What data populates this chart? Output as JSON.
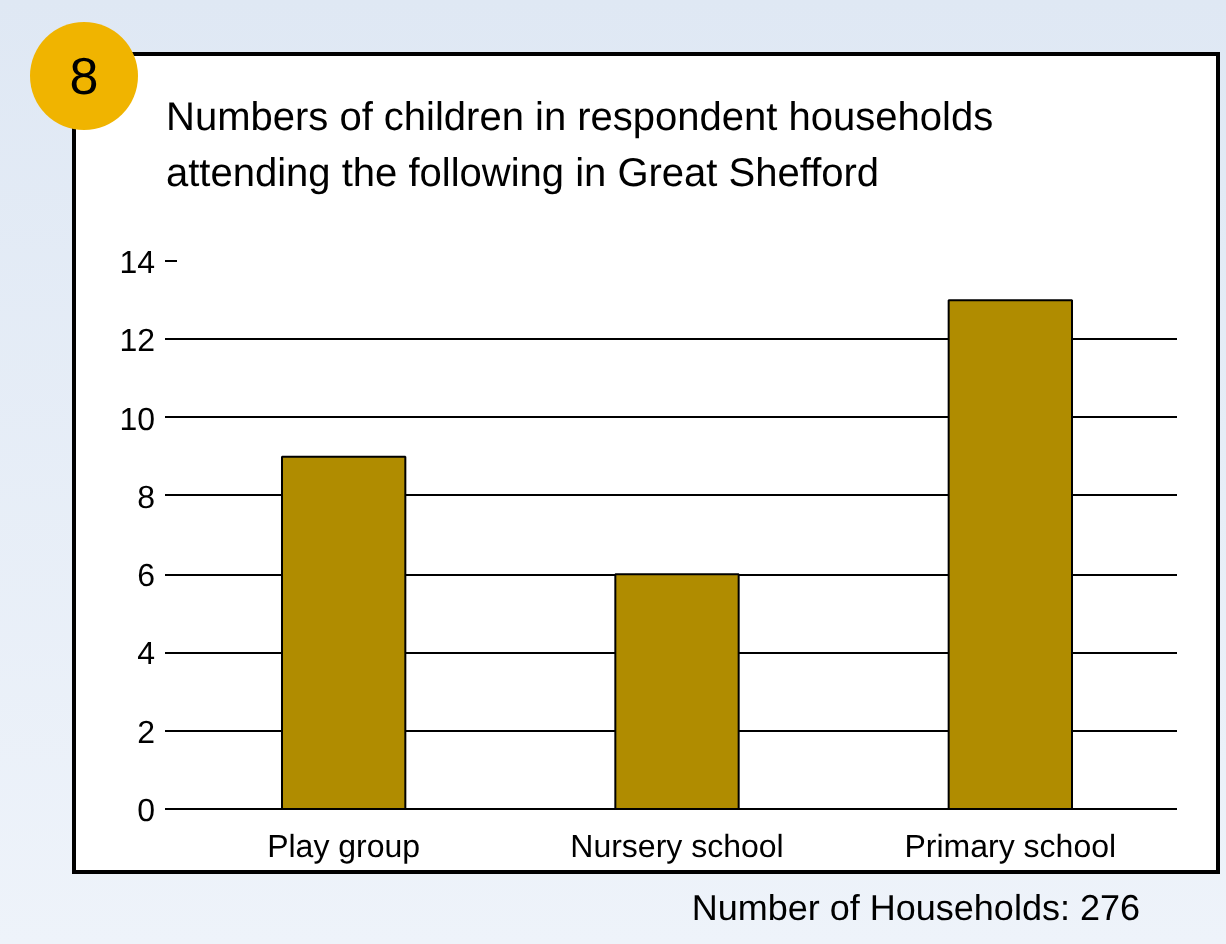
{
  "chart_data": {
    "type": "bar",
    "title": "Numbers of children in respondent households attending the following in Great Shefford",
    "categories": [
      "Play group",
      "Nursery school",
      "Primary school"
    ],
    "values": [
      9,
      6,
      13
    ],
    "color": "#b08c00",
    "ylim": [
      0,
      14
    ],
    "yticks": [
      0,
      2,
      4,
      6,
      8,
      10,
      12,
      14
    ],
    "grid": "y",
    "annotations": [
      "8",
      "Number of Households: 276"
    ]
  }
}
